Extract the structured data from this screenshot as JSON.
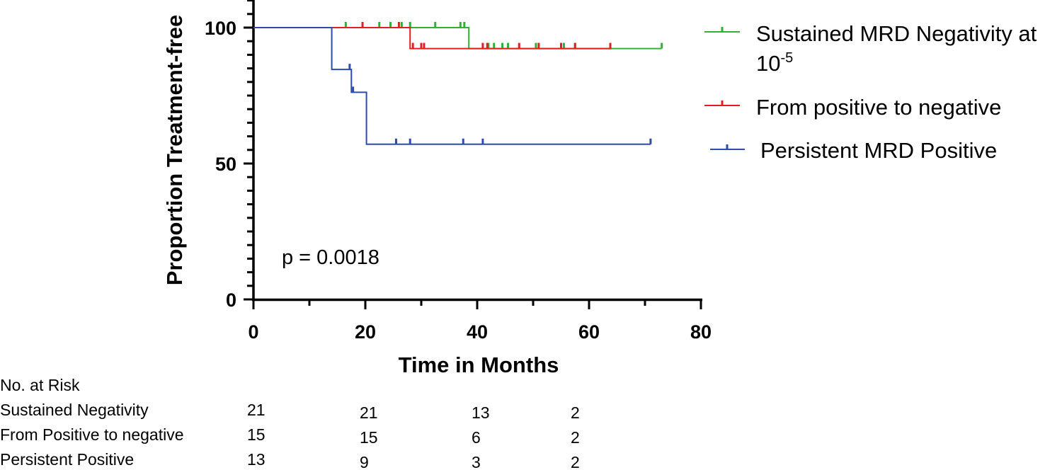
{
  "chart_data": {
    "type": "line",
    "subtype": "kaplan-meier",
    "ylabel": "Proportion Treatment-free",
    "xlabel": "Time in Months",
    "xlim": [
      0,
      80
    ],
    "ylim": [
      0,
      100
    ],
    "xticks": [
      0,
      20,
      40,
      60,
      80
    ],
    "yticks": [
      0,
      50,
      100
    ],
    "legend_position": "right",
    "annotation": "p = 0.0018",
    "series": [
      {
        "name_main": "Sustained MRD Negativity at",
        "name_line2_base": "10",
        "name_line2_sup": "-5",
        "color": "#2fb22f",
        "steps": [
          [
            0,
            100
          ],
          [
            38.5,
            100
          ],
          [
            38.5,
            92.3
          ],
          [
            73,
            92.3
          ]
        ],
        "censors": [
          [
            16.5,
            100
          ],
          [
            22.5,
            100
          ],
          [
            24.5,
            100
          ],
          [
            26.5,
            100
          ],
          [
            28,
            100
          ],
          [
            32.5,
            100
          ],
          [
            37,
            100
          ],
          [
            37.7,
            100
          ],
          [
            42,
            92.3
          ],
          [
            43,
            92.3
          ],
          [
            44.5,
            92.3
          ],
          [
            45.5,
            92.3
          ],
          [
            50.5,
            92.3
          ],
          [
            55.5,
            92.3
          ],
          [
            57.5,
            92.3
          ],
          [
            73,
            92.3
          ]
        ]
      },
      {
        "name": "From positive to negative",
        "color": "#e02020",
        "steps": [
          [
            0,
            100
          ],
          [
            28,
            100
          ],
          [
            28,
            92.3
          ],
          [
            64,
            92.3
          ]
        ],
        "censors": [
          [
            19.5,
            100
          ],
          [
            26,
            100
          ],
          [
            28.5,
            92.3
          ],
          [
            30,
            92.3
          ],
          [
            30.5,
            92.3
          ],
          [
            41,
            92.3
          ],
          [
            41.8,
            92.3
          ],
          [
            47.5,
            92.3
          ],
          [
            51,
            92.3
          ],
          [
            55,
            92.3
          ],
          [
            57.5,
            92.3
          ],
          [
            63.8,
            92.3
          ]
        ]
      },
      {
        "name": "Persistent MRD Positive",
        "color": "#2e4bb0",
        "steps": [
          [
            0,
            100
          ],
          [
            14,
            100
          ],
          [
            14,
            84.6
          ],
          [
            17.5,
            84.6
          ],
          [
            17.5,
            76.2
          ],
          [
            20.2,
            76.2
          ],
          [
            20.2,
            57.1
          ],
          [
            71,
            57.1
          ]
        ],
        "censors": [
          [
            17.2,
            84.6
          ],
          [
            17.8,
            76.2
          ],
          [
            25.5,
            57.1
          ],
          [
            28,
            57.1
          ],
          [
            37.5,
            57.1
          ],
          [
            41,
            57.1
          ],
          [
            71,
            57.1
          ]
        ]
      }
    ]
  },
  "risk_table": {
    "title": "No. at Risk",
    "rows": [
      {
        "label": "Sustained Negativity",
        "counts": [
          "21",
          "21",
          "13",
          "2"
        ]
      },
      {
        "label": "From Positive to negative",
        "counts": [
          "15",
          "15",
          "6",
          "2"
        ]
      },
      {
        "label": "Persistent Positive",
        "counts": [
          "13",
          "9",
          "3",
          "2"
        ]
      }
    ]
  }
}
